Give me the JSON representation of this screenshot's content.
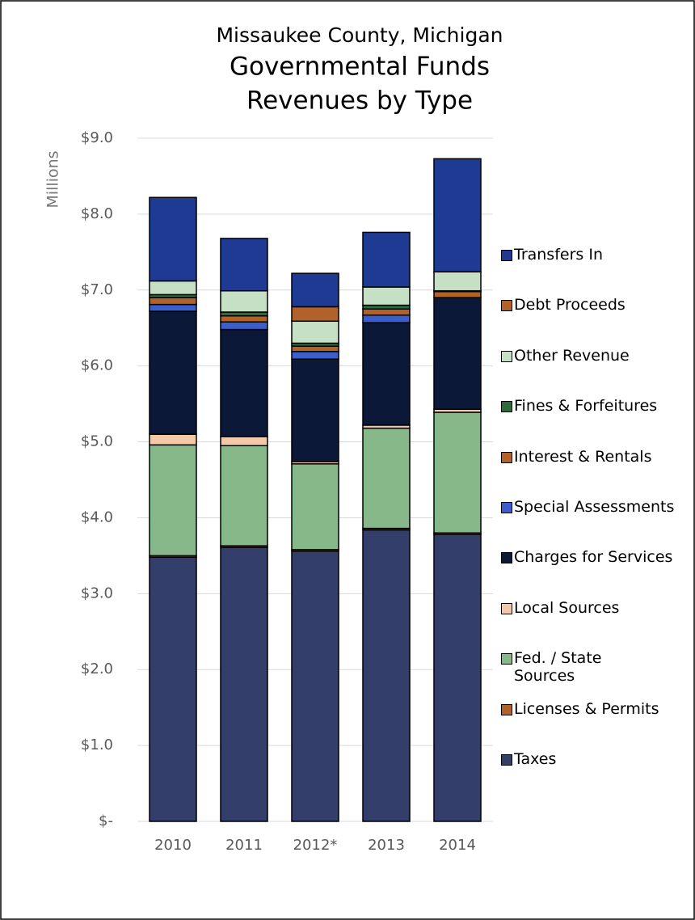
{
  "chart_data": {
    "type": "stacked_bar",
    "title_lines": [
      "Missaukee County, Michigan",
      "Governmental Funds",
      "Revenues by Type"
    ],
    "y_label": "Millions",
    "categories": [
      "2010",
      "2011",
      "2012*",
      "2013",
      "2014"
    ],
    "ylim": [
      0,
      9
    ],
    "yticks": [
      {
        "value": 0,
        "label": "$-"
      },
      {
        "value": 1,
        "label": "$1.0"
      },
      {
        "value": 2,
        "label": "$2.0"
      },
      {
        "value": 3,
        "label": "$3.0"
      },
      {
        "value": 4,
        "label": "$4.0"
      },
      {
        "value": 5,
        "label": "$5.0"
      },
      {
        "value": 6,
        "label": "$6.0"
      },
      {
        "value": 7,
        "label": "$7.0"
      },
      {
        "value": 8,
        "label": "$8.0"
      },
      {
        "value": 9,
        "label": "$9.0"
      }
    ],
    "grid": true,
    "series": [
      {
        "name": "Taxes",
        "color": "#333f6a",
        "values": [
          3.48,
          3.61,
          3.56,
          3.84,
          3.78
        ]
      },
      {
        "name": "Licenses & Permits",
        "color": "#b0622a",
        "values": [
          0.02,
          0.02,
          0.02,
          0.02,
          0.02
        ]
      },
      {
        "name": "Fed. / State Sources",
        "color": "#86b88a",
        "values": [
          1.46,
          1.32,
          1.13,
          1.32,
          1.59
        ]
      },
      {
        "name": "Local Sources",
        "color": "#f5c8a8",
        "values": [
          0.14,
          0.12,
          0.03,
          0.04,
          0.04
        ]
      },
      {
        "name": "Charges for Services",
        "color": "#0c1838",
        "values": [
          1.62,
          1.41,
          1.35,
          1.35,
          1.47
        ]
      },
      {
        "name": "Special Assessments",
        "color": "#3a5fcd",
        "values": [
          0.09,
          0.1,
          0.1,
          0.1,
          0
        ]
      },
      {
        "name": "Interest & Rentals",
        "color": "#b0622a",
        "values": [
          0.09,
          0.08,
          0.07,
          0.08,
          0.08
        ]
      },
      {
        "name": "Fines & Forfeitures",
        "color": "#2e6b3a",
        "values": [
          0.04,
          0.05,
          0.04,
          0.05,
          0.01
        ]
      },
      {
        "name": "Other Revenue",
        "color": "#c5e0c5",
        "values": [
          0.18,
          0.28,
          0.29,
          0.24,
          0.25
        ]
      },
      {
        "name": "Debt Proceeds",
        "color": "#b0622a",
        "values": [
          0,
          0,
          0.19,
          0,
          0
        ]
      },
      {
        "name": "Transfers In",
        "color": "#1f3a93",
        "values": [
          1.1,
          0.69,
          0.44,
          0.72,
          1.49
        ]
      }
    ]
  }
}
